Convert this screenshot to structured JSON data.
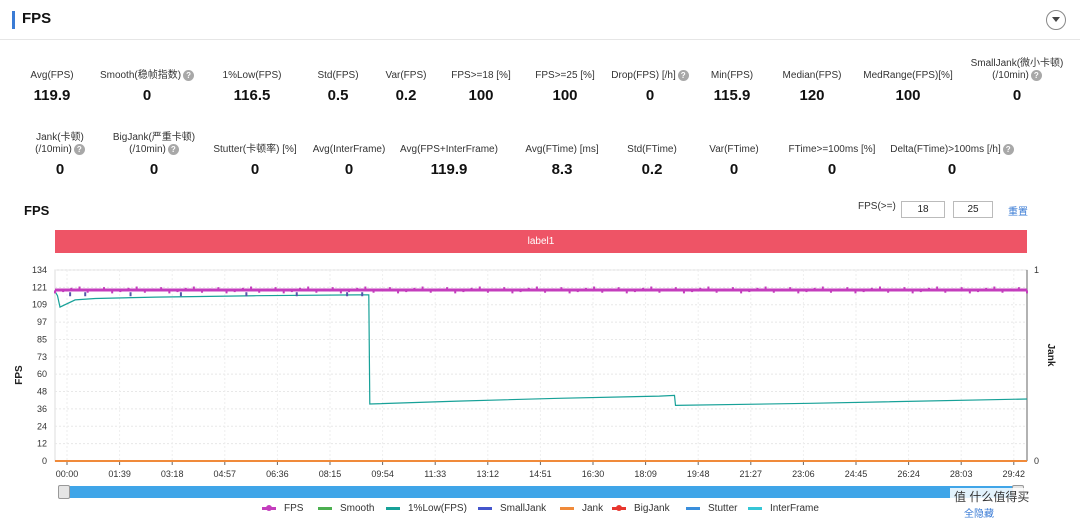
{
  "header": {
    "title": "FPS"
  },
  "metrics_row1": [
    {
      "label": "Avg(FPS)",
      "value": "119.9",
      "help": false
    },
    {
      "label": "Smooth(稳帧指数)",
      "value": "0",
      "help": true
    },
    {
      "label": "1%Low(FPS)",
      "value": "116.5",
      "help": false
    },
    {
      "label": "Std(FPS)",
      "value": "0.5",
      "help": false
    },
    {
      "label": "Var(FPS)",
      "value": "0.2",
      "help": false
    },
    {
      "label": "FPS>=18 [%]",
      "value": "100",
      "help": false
    },
    {
      "label": "FPS>=25 [%]",
      "value": "100",
      "help": false
    },
    {
      "label": "Drop(FPS) [/h]",
      "value": "0",
      "help": true
    },
    {
      "label": "Min(FPS)",
      "value": "115.9",
      "help": false
    },
    {
      "label": "Median(FPS)",
      "value": "120",
      "help": false
    },
    {
      "label": "MedRange(FPS)[%]",
      "value": "100",
      "help": false
    },
    {
      "label": "SmallJank(微小卡顿)",
      "label2": "(/10min)",
      "value": "0",
      "help": true
    }
  ],
  "metrics_row2": [
    {
      "label": "Jank(卡顿)",
      "label2": "(/10min)",
      "value": "0",
      "help": true
    },
    {
      "label": "BigJank(严重卡顿)",
      "label2": "(/10min)",
      "value": "0",
      "help": true
    },
    {
      "label": "Stutter(卡顿率) [%]",
      "value": "0",
      "help": false
    },
    {
      "label": "Avg(InterFrame)",
      "value": "0",
      "help": false
    },
    {
      "label": "Avg(FPS+InterFrame)",
      "value": "119.9",
      "help": false
    },
    {
      "label": "Avg(FTime) [ms]",
      "value": "8.3",
      "help": false
    },
    {
      "label": "Std(FTime)",
      "value": "0.2",
      "help": false
    },
    {
      "label": "Var(FTime)",
      "value": "0",
      "help": false
    },
    {
      "label": "FTime>=100ms [%]",
      "value": "0",
      "help": false
    },
    {
      "label": "Delta(FTime)>100ms [/h]",
      "value": "0",
      "help": true
    }
  ],
  "chart_panel": {
    "title": "FPS",
    "threshold_label": "FPS(>=)",
    "threshold1": "18",
    "threshold2": "25",
    "reset_label": "重置",
    "label_band": "label1",
    "hide_all_label": "全隐藏",
    "brand": "值 什么值得买"
  },
  "chart_data": {
    "type": "line",
    "title": "",
    "ylabel": "FPS",
    "y2label": "Jank",
    "ylim": [
      0,
      134
    ],
    "y2lim": [
      0,
      1
    ],
    "yticks": [
      "0",
      "12",
      "24",
      "36",
      "48",
      "60",
      "73",
      "85",
      "97",
      "109",
      "121",
      "134"
    ],
    "y2ticks": [
      "0",
      "1"
    ],
    "xticks": [
      "00:00",
      "01:39",
      "03:18",
      "04:57",
      "06:36",
      "08:15",
      "09:54",
      "11:33",
      "13:12",
      "14:51",
      "16:30",
      "18:09",
      "19:48",
      "21:27",
      "23:06",
      "24:45",
      "26:24",
      "28:03",
      "29:42"
    ],
    "xlim_seconds": [
      0,
      1930
    ],
    "grid": true,
    "series": [
      {
        "name": "FPS",
        "color": "#c43dbd",
        "points": [
          [
            0,
            120
          ],
          [
            100,
            120
          ],
          [
            400,
            120
          ],
          [
            800,
            120
          ],
          [
            1200,
            120
          ],
          [
            1600,
            120
          ],
          [
            1930,
            120
          ]
        ]
      },
      {
        "name": "Smooth",
        "color": "#4caf50",
        "points": [
          [
            0,
            0
          ],
          [
            1930,
            0
          ]
        ]
      },
      {
        "name": "1%Low(FPS)",
        "color": "#17a198",
        "points": [
          [
            0,
            119
          ],
          [
            5,
            116
          ],
          [
            10,
            108
          ],
          [
            40,
            113
          ],
          [
            80,
            114
          ],
          [
            200,
            115
          ],
          [
            400,
            116
          ],
          [
            600,
            116.5
          ],
          [
            623,
            116.5
          ],
          [
            625,
            40
          ],
          [
            800,
            42
          ],
          [
            1000,
            44
          ],
          [
            1200,
            45.5
          ],
          [
            1230,
            46
          ],
          [
            1232,
            39
          ],
          [
            1500,
            40.5
          ],
          [
            1930,
            43.5
          ]
        ]
      },
      {
        "name": "SmallJank",
        "color": "#4455cc",
        "points": []
      },
      {
        "name": "Jank",
        "color": "#f08a3a",
        "points": [
          [
            0,
            0
          ],
          [
            1930,
            0
          ]
        ]
      },
      {
        "name": "BigJank",
        "color": "#e8362e",
        "points": []
      },
      {
        "name": "Stutter",
        "color": "#3a8edc",
        "points": []
      },
      {
        "name": "InterFrame",
        "color": "#35c6d6",
        "points": []
      }
    ]
  },
  "legend": [
    {
      "name": "FPS",
      "color": "#c43dbd",
      "marker": true
    },
    {
      "name": "Smooth",
      "color": "#4caf50",
      "marker": false
    },
    {
      "name": "1%Low(FPS)",
      "color": "#17a198",
      "marker": false
    },
    {
      "name": "SmallJank",
      "color": "#4455cc",
      "marker": false
    },
    {
      "name": "Jank",
      "color": "#f08a3a",
      "marker": false
    },
    {
      "name": "BigJank",
      "color": "#e8362e",
      "marker": true
    },
    {
      "name": "Stutter",
      "color": "#3a8edc",
      "marker": false
    },
    {
      "name": "InterFrame",
      "color": "#35c6d6",
      "marker": false
    }
  ]
}
